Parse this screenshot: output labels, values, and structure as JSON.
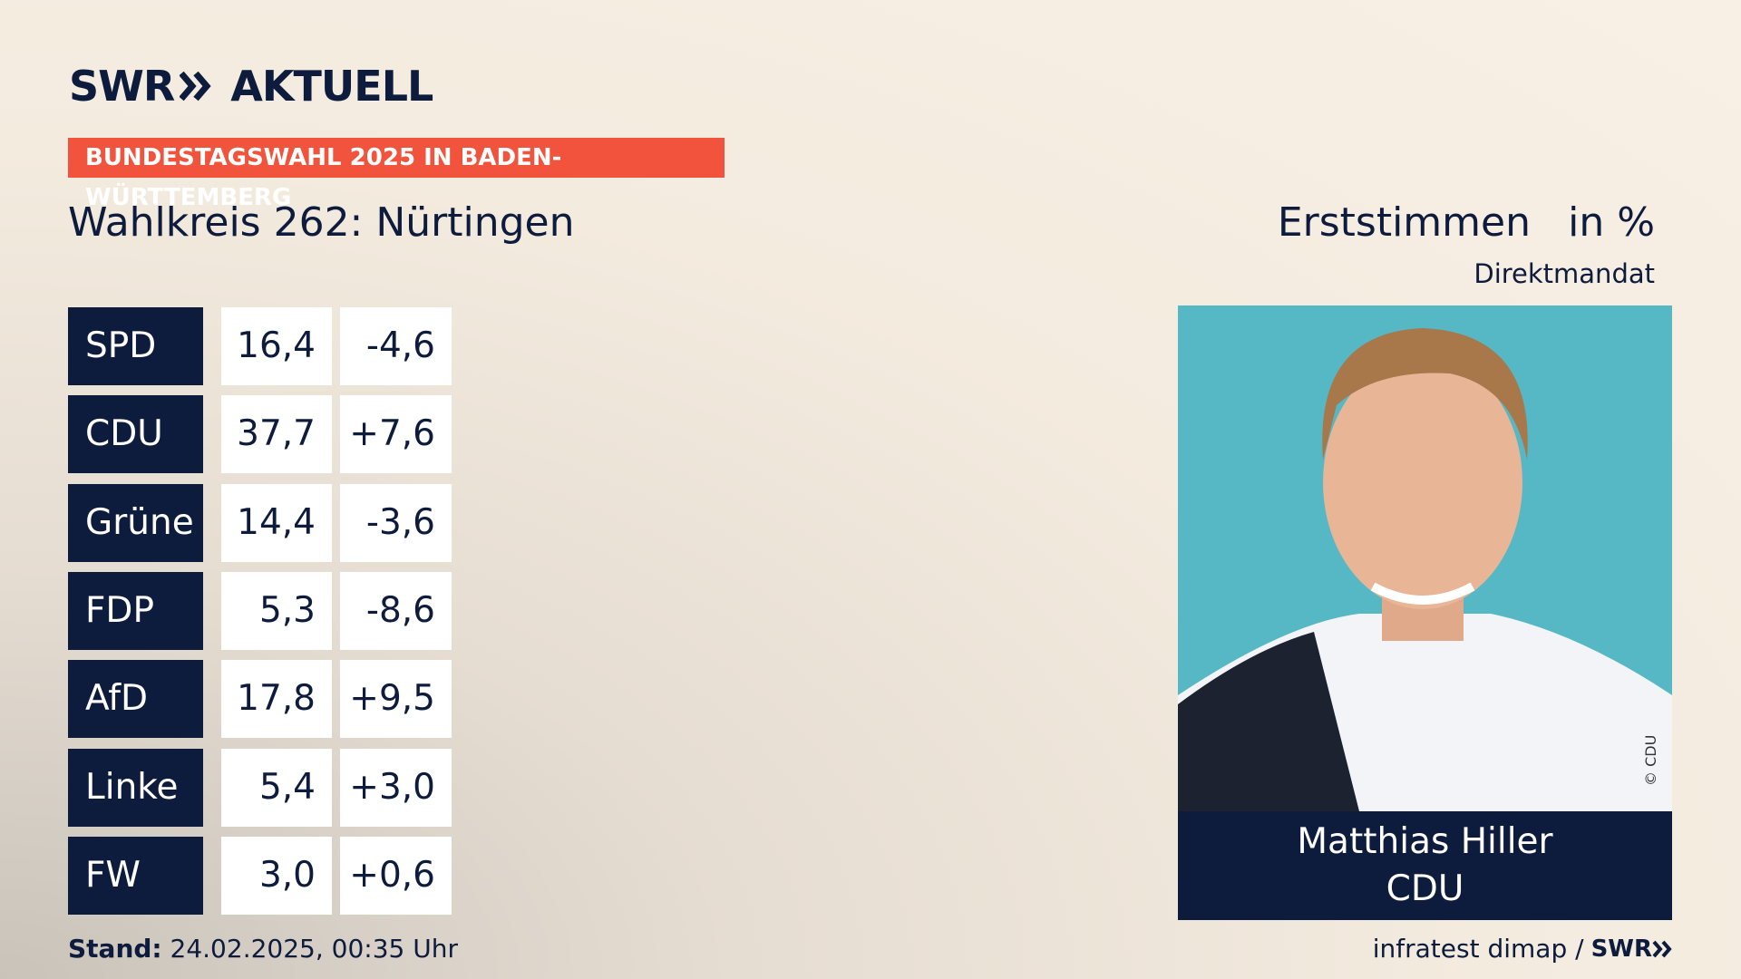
{
  "header": {
    "logo_left": "SWR",
    "logo_right": "AKTUELL",
    "banner": "BUNDESTAGSWAHL 2025 IN BADEN-WÜRTTEMBERG",
    "title": "Wahlkreis 262: Nürtingen",
    "measure": "Erststimmen",
    "unit": "in %",
    "subtitle": "Direktmandat"
  },
  "table": {
    "rows": [
      [
        "SPD",
        "16,4",
        "-4,6"
      ],
      [
        "CDU",
        "37,7",
        "+7,6"
      ],
      [
        "Grüne",
        "14,4",
        "-3,6"
      ],
      [
        "FDP",
        "5,3",
        "-8,6"
      ],
      [
        "AfD",
        "17,8",
        "+9,5"
      ],
      [
        "Linke",
        "5,4",
        "+3,0"
      ],
      [
        "FW",
        "3,0",
        "+0,6"
      ]
    ]
  },
  "candidate": {
    "name": "Matthias Hiller",
    "party": "CDU",
    "photo_credit": "© CDU"
  },
  "footer": {
    "stand_label": "Stand:",
    "stand_value": "24.02.2025, 00:35 Uhr",
    "source": "infratest dimap /",
    "source_logo": "SWR"
  }
}
